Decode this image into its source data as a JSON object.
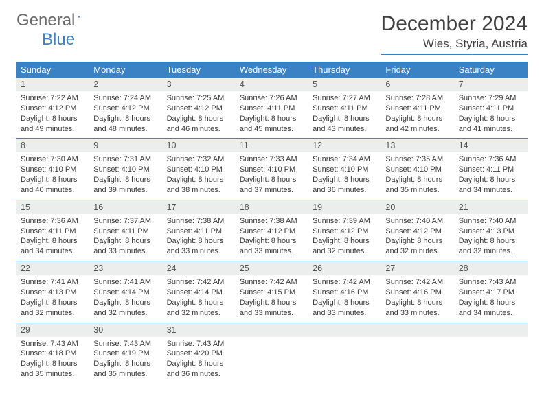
{
  "logo": {
    "word1": "General",
    "word2": "Blue"
  },
  "title": "December 2024",
  "location": "Wies, Styria, Austria",
  "colors": {
    "header_bg": "#3a82c4",
    "header_text": "#ffffff",
    "daynum_bg": "#eceded",
    "text": "#3a3a3a",
    "rule": "#3a82c4"
  },
  "day_names": [
    "Sunday",
    "Monday",
    "Tuesday",
    "Wednesday",
    "Thursday",
    "Friday",
    "Saturday"
  ],
  "weeks": [
    [
      {
        "n": "1",
        "sr": "7:22 AM",
        "ss": "4:12 PM",
        "dl": "8 hours and 49 minutes."
      },
      {
        "n": "2",
        "sr": "7:24 AM",
        "ss": "4:12 PM",
        "dl": "8 hours and 48 minutes."
      },
      {
        "n": "3",
        "sr": "7:25 AM",
        "ss": "4:12 PM",
        "dl": "8 hours and 46 minutes."
      },
      {
        "n": "4",
        "sr": "7:26 AM",
        "ss": "4:11 PM",
        "dl": "8 hours and 45 minutes."
      },
      {
        "n": "5",
        "sr": "7:27 AM",
        "ss": "4:11 PM",
        "dl": "8 hours and 43 minutes."
      },
      {
        "n": "6",
        "sr": "7:28 AM",
        "ss": "4:11 PM",
        "dl": "8 hours and 42 minutes."
      },
      {
        "n": "7",
        "sr": "7:29 AM",
        "ss": "4:11 PM",
        "dl": "8 hours and 41 minutes."
      }
    ],
    [
      {
        "n": "8",
        "sr": "7:30 AM",
        "ss": "4:10 PM",
        "dl": "8 hours and 40 minutes."
      },
      {
        "n": "9",
        "sr": "7:31 AM",
        "ss": "4:10 PM",
        "dl": "8 hours and 39 minutes."
      },
      {
        "n": "10",
        "sr": "7:32 AM",
        "ss": "4:10 PM",
        "dl": "8 hours and 38 minutes."
      },
      {
        "n": "11",
        "sr": "7:33 AM",
        "ss": "4:10 PM",
        "dl": "8 hours and 37 minutes."
      },
      {
        "n": "12",
        "sr": "7:34 AM",
        "ss": "4:10 PM",
        "dl": "8 hours and 36 minutes."
      },
      {
        "n": "13",
        "sr": "7:35 AM",
        "ss": "4:10 PM",
        "dl": "8 hours and 35 minutes."
      },
      {
        "n": "14",
        "sr": "7:36 AM",
        "ss": "4:11 PM",
        "dl": "8 hours and 34 minutes."
      }
    ],
    [
      {
        "n": "15",
        "sr": "7:36 AM",
        "ss": "4:11 PM",
        "dl": "8 hours and 34 minutes."
      },
      {
        "n": "16",
        "sr": "7:37 AM",
        "ss": "4:11 PM",
        "dl": "8 hours and 33 minutes."
      },
      {
        "n": "17",
        "sr": "7:38 AM",
        "ss": "4:11 PM",
        "dl": "8 hours and 33 minutes."
      },
      {
        "n": "18",
        "sr": "7:38 AM",
        "ss": "4:12 PM",
        "dl": "8 hours and 33 minutes."
      },
      {
        "n": "19",
        "sr": "7:39 AM",
        "ss": "4:12 PM",
        "dl": "8 hours and 32 minutes."
      },
      {
        "n": "20",
        "sr": "7:40 AM",
        "ss": "4:12 PM",
        "dl": "8 hours and 32 minutes."
      },
      {
        "n": "21",
        "sr": "7:40 AM",
        "ss": "4:13 PM",
        "dl": "8 hours and 32 minutes."
      }
    ],
    [
      {
        "n": "22",
        "sr": "7:41 AM",
        "ss": "4:13 PM",
        "dl": "8 hours and 32 minutes."
      },
      {
        "n": "23",
        "sr": "7:41 AM",
        "ss": "4:14 PM",
        "dl": "8 hours and 32 minutes."
      },
      {
        "n": "24",
        "sr": "7:42 AM",
        "ss": "4:14 PM",
        "dl": "8 hours and 32 minutes."
      },
      {
        "n": "25",
        "sr": "7:42 AM",
        "ss": "4:15 PM",
        "dl": "8 hours and 33 minutes."
      },
      {
        "n": "26",
        "sr": "7:42 AM",
        "ss": "4:16 PM",
        "dl": "8 hours and 33 minutes."
      },
      {
        "n": "27",
        "sr": "7:42 AM",
        "ss": "4:16 PM",
        "dl": "8 hours and 33 minutes."
      },
      {
        "n": "28",
        "sr": "7:43 AM",
        "ss": "4:17 PM",
        "dl": "8 hours and 34 minutes."
      }
    ],
    [
      {
        "n": "29",
        "sr": "7:43 AM",
        "ss": "4:18 PM",
        "dl": "8 hours and 35 minutes."
      },
      {
        "n": "30",
        "sr": "7:43 AM",
        "ss": "4:19 PM",
        "dl": "8 hours and 35 minutes."
      },
      {
        "n": "31",
        "sr": "7:43 AM",
        "ss": "4:20 PM",
        "dl": "8 hours and 36 minutes."
      },
      null,
      null,
      null,
      null
    ]
  ]
}
